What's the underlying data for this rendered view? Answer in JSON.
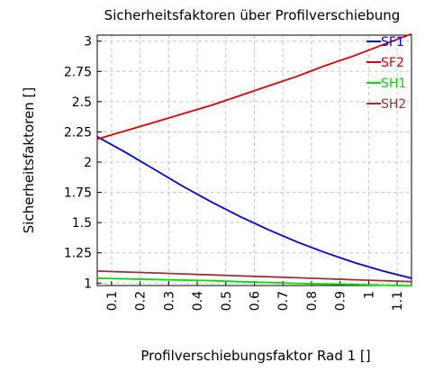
{
  "chart_data": {
    "type": "line",
    "title": "Sicherheitsfaktoren über Profilverschiebung",
    "xlabel": "Profilverschiebungsfaktor Rad 1 []",
    "ylabel": "Sicherheitsfaktoren []",
    "xlim": [
      0.05,
      1.15
    ],
    "ylim": [
      0.98,
      3.05
    ],
    "x_ticks": [
      0.1,
      0.2,
      0.3,
      0.4,
      0.5,
      0.6,
      0.7,
      0.8,
      0.9,
      1,
      1.1
    ],
    "x_tick_labels": [
      "0.1",
      "0.2",
      "0.3",
      "0.4",
      "0.5",
      "0.6",
      "0.7",
      "0.8",
      "0.9",
      "1",
      "1.1"
    ],
    "y_ticks": [
      1,
      1.25,
      1.5,
      1.75,
      2,
      2.25,
      2.5,
      2.75,
      3
    ],
    "y_tick_labels": [
      "1",
      "1.25",
      "1.5",
      "1.75",
      "2",
      "2.25",
      "2.5",
      "2.75",
      "3"
    ],
    "grid": true,
    "legend_position": "top-right",
    "x": [
      0.05,
      0.15,
      0.25,
      0.35,
      0.45,
      0.55,
      0.65,
      0.75,
      0.85,
      0.95,
      1.05,
      1.15
    ],
    "series": [
      {
        "name": "SF1",
        "color": "#0000dd",
        "values": [
          2.21,
          2.08,
          1.94,
          1.8,
          1.67,
          1.55,
          1.44,
          1.34,
          1.25,
          1.17,
          1.1,
          1.04
        ]
      },
      {
        "name": "SF2",
        "color": "#dd0000",
        "values": [
          2.19,
          2.26,
          2.33,
          2.4,
          2.47,
          2.55,
          2.63,
          2.71,
          2.8,
          2.88,
          2.97,
          3.06
        ]
      },
      {
        "name": "SH1",
        "color": "#00dd00",
        "values": [
          1.04,
          1.035,
          1.03,
          1.025,
          1.02,
          1.012,
          1.005,
          0.998,
          0.993,
          0.988,
          0.983,
          0.978
        ]
      },
      {
        "name": "SH2",
        "color": "#993333",
        "values": [
          1.1,
          1.092,
          1.084,
          1.076,
          1.068,
          1.06,
          1.052,
          1.044,
          1.036,
          1.028,
          1.02,
          1.013
        ]
      }
    ]
  }
}
